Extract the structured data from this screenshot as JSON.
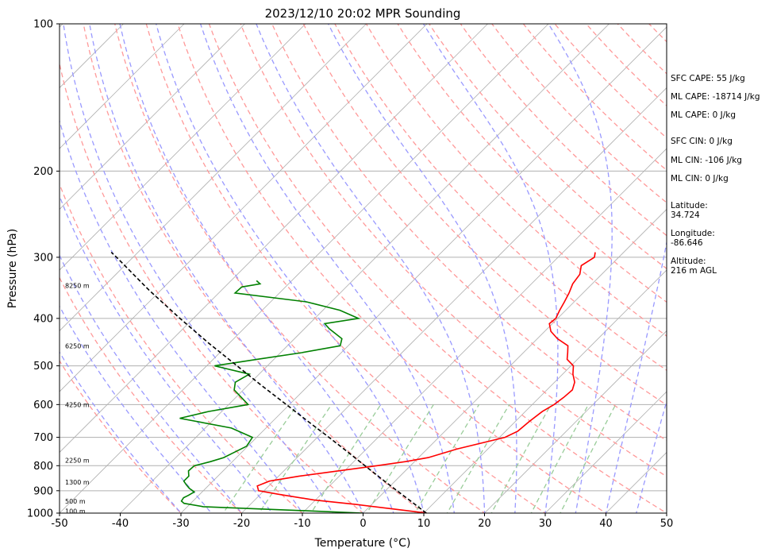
{
  "chart_data": {
    "type": "line",
    "subtype": "skew-t log-p",
    "title": "2023/12/10 20:02 MPR Sounding",
    "xlabel": "Temperature (°C)",
    "ylabel": "Pressure (hPa)",
    "xlim": [
      -50,
      50
    ],
    "ylim": [
      1000,
      100
    ],
    "y_scale": "log",
    "grid": true,
    "x_ticks": [
      -50,
      -40,
      -30,
      -20,
      -10,
      0,
      10,
      20,
      30,
      40,
      50
    ],
    "y_ticks": [
      1000,
      900,
      800,
      700,
      600,
      500,
      400,
      300,
      200,
      100
    ],
    "height_labels": [
      {
        "text": "100 m",
        "p": 990
      },
      {
        "text": "500 m",
        "p": 945
      },
      {
        "text": "1300 m",
        "p": 865
      },
      {
        "text": "2250 m",
        "p": 780
      },
      {
        "text": "4250 m",
        "p": 600
      },
      {
        "text": "6250 m",
        "p": 455
      },
      {
        "text": "8250 m",
        "p": 343
      }
    ],
    "series": [
      {
        "kind": "temperature",
        "color": "#ff0000",
        "points": [
          [
            1000,
            10.5
          ],
          [
            980,
            4.0
          ],
          [
            960,
            -2.6
          ],
          [
            940,
            -10.3
          ],
          [
            915,
            -17.1
          ],
          [
            900,
            -20.9
          ],
          [
            880,
            -21.9
          ],
          [
            860,
            -20.7
          ],
          [
            840,
            -16.6
          ],
          [
            820,
            -11.1
          ],
          [
            800,
            -5.5
          ],
          [
            785,
            -1.5
          ],
          [
            770,
            1.6
          ],
          [
            740,
            4.9
          ],
          [
            700,
            10.9
          ],
          [
            680,
            12.0
          ],
          [
            650,
            12.3
          ],
          [
            620,
            12.8
          ],
          [
            600,
            13.6
          ],
          [
            580,
            14.0
          ],
          [
            560,
            14.2
          ],
          [
            540,
            13.3
          ],
          [
            520,
            11.7
          ],
          [
            500,
            10.4
          ],
          [
            485,
            8.3
          ],
          [
            470,
            7.3
          ],
          [
            455,
            6.2
          ],
          [
            440,
            3.3
          ],
          [
            425,
            1.0
          ],
          [
            410,
            -0.5
          ],
          [
            400,
            -0.3
          ],
          [
            385,
            -1.0
          ],
          [
            370,
            -1.6
          ],
          [
            355,
            -2.3
          ],
          [
            340,
            -3.2
          ],
          [
            325,
            -3.6
          ],
          [
            312,
            -4.8
          ],
          [
            300,
            -4.0
          ],
          [
            293,
            -4.7
          ]
        ]
      },
      {
        "kind": "dewpoint",
        "color": "#008000",
        "points": [
          [
            1000,
            0.0
          ],
          [
            990,
            -8.9
          ],
          [
            970,
            -27.4
          ],
          [
            955,
            -31.1
          ],
          [
            945,
            -31.9
          ],
          [
            930,
            -32.1
          ],
          [
            920,
            -31.7
          ],
          [
            905,
            -31.3
          ],
          [
            890,
            -32.7
          ],
          [
            875,
            -33.8
          ],
          [
            860,
            -34.8
          ],
          [
            840,
            -34.8
          ],
          [
            820,
            -35.7
          ],
          [
            800,
            -35.6
          ],
          [
            785,
            -33.6
          ],
          [
            770,
            -32.1
          ],
          [
            755,
            -31.4
          ],
          [
            730,
            -30.2
          ],
          [
            700,
            -30.7
          ],
          [
            670,
            -35.7
          ],
          [
            640,
            -45.8
          ],
          [
            620,
            -42.2
          ],
          [
            600,
            -36.8
          ],
          [
            580,
            -39.1
          ],
          [
            560,
            -41.5
          ],
          [
            540,
            -42.6
          ],
          [
            520,
            -41.6
          ],
          [
            500,
            -48.7
          ],
          [
            485,
            -42.8
          ],
          [
            470,
            -36.5
          ],
          [
            455,
            -31.3
          ],
          [
            440,
            -32.2
          ],
          [
            420,
            -35.9
          ],
          [
            410,
            -37.5
          ],
          [
            400,
            -32.8
          ],
          [
            385,
            -37.2
          ],
          [
            370,
            -44.1
          ],
          [
            355,
            -57.3
          ],
          [
            345,
            -57.2
          ],
          [
            340,
            -54.7
          ],
          [
            335,
            -55.8
          ]
        ]
      },
      {
        "kind": "parcel",
        "color": "#000000",
        "points": [
          [
            1000,
            10.4
          ],
          [
            950,
            6.3
          ],
          [
            900,
            1.9
          ],
          [
            850,
            -2.7
          ],
          [
            800,
            -7.5
          ],
          [
            750,
            -12.6
          ],
          [
            700,
            -18.1
          ],
          [
            650,
            -24.1
          ],
          [
            600,
            -30.5
          ],
          [
            550,
            -37.5
          ],
          [
            500,
            -45.0
          ],
          [
            450,
            -53.3
          ],
          [
            400,
            -62.2
          ],
          [
            350,
            -72.0
          ],
          [
            300,
            -82.7
          ],
          [
            293,
            -84.4
          ]
        ]
      }
    ]
  },
  "side_panel": {
    "sfc_cape": "SFC CAPE: 55 J/kg",
    "ml_cape_1": "ML CAPE: -18714 J/kg",
    "ml_cape_2": "ML CAPE: 0 J/kg",
    "sfc_cin": "SFC CIN: 0 J/kg",
    "ml_cin_1": "ML CIN: -106 J/kg",
    "ml_cin_2": "ML CIN: 0 J/kg",
    "latitude": "Latitude:\n34.724",
    "longitude": "Longitude:\n-86.646",
    "altitude": "Altitude:\n216 m AGL"
  },
  "colors": {
    "dry_adiabat": "#ff9999",
    "moist_adiabat": "#9999ff",
    "mixing_ratio": "#99cc99",
    "isotherm": "#b0b0b0"
  }
}
